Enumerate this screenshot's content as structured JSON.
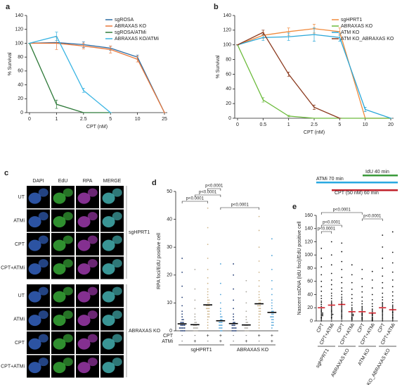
{
  "panel_c": {
    "panel": "c",
    "columns": [
      "DAPI",
      "EdU",
      "RPA",
      "MERGE"
    ],
    "rows": [
      "UT",
      "ATMi",
      "CPT",
      "CPT+ATMi",
      "UT",
      "ATMi",
      "CPT",
      "CPT+ATMi"
    ],
    "groups": [
      "sgHPRT1",
      "ABRAXAS KO"
    ]
  },
  "chart_data": [
    {
      "panel": "a",
      "type": "line",
      "xlabel": "CPT (nM)",
      "ylabel": "% Survival",
      "categories": [
        "0",
        "1",
        "2.5",
        "5",
        "10",
        "25"
      ],
      "ylim": [
        0,
        140
      ],
      "yticks": [
        0,
        20,
        40,
        60,
        80,
        100,
        120,
        140
      ],
      "series": [
        {
          "name": "sgROSA",
          "color": "#2b6ca3",
          "values": [
            100,
            101,
            98,
            93,
            80,
            0
          ],
          "errors": [
            0,
            0,
            4,
            3,
            3,
            0
          ]
        },
        {
          "name": "ABRAXAS KO",
          "color": "#e8773a",
          "values": [
            100,
            100,
            96,
            91,
            77,
            0
          ],
          "errors": [
            0,
            9,
            4,
            5,
            4,
            0
          ]
        },
        {
          "name": "sgROSA/ATMi",
          "color": "#2f7a3a",
          "values": [
            100,
            12,
            0,
            0,
            null,
            null
          ],
          "errors": [
            0,
            6,
            0,
            0,
            null,
            null
          ]
        },
        {
          "name": "ABRAXAS KO/ATMi",
          "color": "#3bb5e3",
          "values": [
            100,
            110,
            32,
            0,
            null,
            null
          ],
          "errors": [
            0,
            6,
            3,
            0,
            null,
            null
          ]
        }
      ]
    },
    {
      "panel": "b",
      "type": "line",
      "xlabel": "CPT (nM)",
      "ylabel": "% Survival",
      "categories": [
        "0",
        "0.5",
        "1",
        "2.5",
        "5",
        "10",
        "20"
      ],
      "ylim": [
        0,
        140
      ],
      "yticks": [
        0,
        20,
        40,
        60,
        80,
        100,
        120,
        140
      ],
      "series": [
        {
          "name": "sgHPRT1",
          "color": "#f08a3c",
          "values": [
            100,
            113,
            118,
            122,
            118,
            0,
            0
          ],
          "errors": [
            0,
            4,
            5,
            6,
            5,
            0,
            0
          ]
        },
        {
          "name": "ABRAXAS KO",
          "color": "#6cbb3c",
          "values": [
            100,
            25,
            3,
            0,
            0,
            0,
            0
          ],
          "errors": [
            0,
            3,
            1,
            0,
            0,
            0,
            0
          ]
        },
        {
          "name": "ATM KO",
          "color": "#2aa7d8",
          "values": [
            100,
            110,
            111,
            114,
            110,
            12,
            0
          ],
          "errors": [
            0,
            4,
            5,
            9,
            5,
            3,
            0
          ]
        },
        {
          "name": "ATM KO_ABRAXAS KO",
          "color": "#8b3a1e",
          "values": [
            100,
            117,
            60,
            15,
            0,
            null,
            null
          ],
          "errors": [
            0,
            3,
            3,
            3,
            0,
            null,
            null
          ]
        }
      ]
    },
    {
      "panel": "d",
      "type": "strip",
      "ylabel": "RPA foci/EdU positive cell",
      "ylim": [
        0,
        50
      ],
      "yticks": [
        0,
        10,
        20,
        30,
        40,
        50
      ],
      "mean_color": "#000000",
      "conditions": [
        {
          "label": "CPT",
          "values": [
            "-",
            "-",
            "+",
            "+",
            "-",
            "-",
            "+",
            "+"
          ]
        },
        {
          "label": "ATMi",
          "values": [
            "-",
            "+",
            "-",
            "+",
            "-",
            "+",
            "-",
            "+"
          ]
        }
      ],
      "genotypes": [
        "sgHPRT1",
        "ABRAXAS KO"
      ],
      "annotations": [
        {
          "text": "p<0.0001",
          "from": 2,
          "to": 3
        },
        {
          "text": "p<0.0001",
          "from": 1,
          "to": 3
        },
        {
          "text": "p<0.0001",
          "from": 0,
          "to": 2
        },
        {
          "text": "p<0.0001",
          "from": 3,
          "to": 6
        }
      ],
      "series": [
        {
          "color": "#1f3a73",
          "mean": 2.5,
          "points": [
            0,
            0,
            0,
            0,
            1,
            1,
            1,
            1,
            1,
            2,
            2,
            2,
            2,
            3,
            3,
            3,
            4,
            4,
            5,
            6,
            7,
            9,
            12,
            16,
            21,
            26
          ]
        },
        {
          "color": "#a9a59c",
          "mean": 2.2,
          "points": [
            0,
            0,
            0,
            0,
            1,
            1,
            1,
            1,
            2,
            2,
            2,
            3,
            3,
            4,
            5,
            6,
            8,
            11,
            15,
            22
          ]
        },
        {
          "color": "#cdb48a",
          "mean": 9.3,
          "points": [
            1,
            2,
            3,
            4,
            5,
            5,
            6,
            6,
            7,
            7,
            8,
            8,
            8,
            9,
            9,
            9,
            10,
            10,
            11,
            11,
            12,
            13,
            14,
            15,
            17,
            19,
            22,
            26,
            31,
            37,
            44
          ]
        },
        {
          "color": "#4fa3d8",
          "mean": 3.6,
          "points": [
            0,
            0,
            1,
            1,
            1,
            2,
            2,
            2,
            3,
            3,
            3,
            4,
            4,
            5,
            5,
            6,
            7,
            8,
            10,
            13,
            17,
            24
          ]
        },
        {
          "color": "#1f3a73",
          "mean": 2.6,
          "points": [
            0,
            0,
            0,
            0,
            1,
            1,
            1,
            1,
            2,
            2,
            2,
            3,
            3,
            4,
            5,
            6,
            8,
            11,
            15,
            20,
            24
          ]
        },
        {
          "color": "#a9a59c",
          "mean": 2.1,
          "points": [
            0,
            0,
            0,
            0,
            1,
            1,
            1,
            2,
            2,
            2,
            3,
            3,
            4,
            5,
            7,
            10,
            14,
            18
          ]
        },
        {
          "color": "#cdb48a",
          "mean": 9.7,
          "points": [
            1,
            2,
            3,
            4,
            5,
            6,
            6,
            7,
            7,
            8,
            8,
            9,
            9,
            9,
            10,
            10,
            11,
            11,
            12,
            13,
            14,
            16,
            18,
            21,
            25,
            30,
            36,
            41
          ]
        },
        {
          "color": "#4fa3d8",
          "mean": 6.6,
          "points": [
            1,
            2,
            2,
            3,
            3,
            4,
            4,
            5,
            5,
            5,
            6,
            6,
            7,
            7,
            8,
            9,
            10,
            11,
            13,
            15,
            18,
            22,
            27,
            33
          ]
        }
      ]
    },
    {
      "panel": "e",
      "type": "strip",
      "ylabel": "Nascent ssDNA (IdU foci)/EdU positive cell",
      "ylim": [
        0,
        160
      ],
      "yticks": [
        0,
        20,
        40,
        60,
        80,
        100,
        120,
        140,
        160
      ],
      "mean_color": "#d0202a",
      "categories": [
        "CPT",
        "CPT+ATMi",
        "CPT",
        "CPT+ATMi",
        "CPT",
        "CPT+ATMi",
        "CPT",
        "CPT+ATMi"
      ],
      "genotypes": [
        "sgHPRT1",
        "ABRAXAS KO",
        "ATM KO",
        "ATM KO_ABRAXAS KO"
      ],
      "schematic": [
        {
          "label": "IdU 40 min",
          "color": "#3a9a3a"
        },
        {
          "label": "ATMi 70 min",
          "color": "#29a8e0"
        },
        {
          "label": "CPT (50 nM) 60 min",
          "color": "#c0202a"
        }
      ],
      "annotations": [
        {
          "text": "p<0.0001",
          "from": 0,
          "to": 4
        },
        {
          "text": "p<0.0001",
          "from": 4,
          "to": 6
        },
        {
          "text": "p<0.0001",
          "from": 0,
          "to": 2
        },
        {
          "text": "p<0.0001",
          "from": 0,
          "to": 1
        }
      ],
      "series": [
        {
          "color": "#111111",
          "mean": 20,
          "points": [
            0,
            2,
            4,
            5,
            6,
            8,
            8,
            10,
            10,
            12,
            12,
            14,
            15,
            16,
            18,
            20,
            20,
            22,
            25,
            28,
            30,
            34,
            38,
            45,
            52,
            60,
            70,
            82,
            95,
            110
          ]
        },
        {
          "color": "#111111",
          "mean": 24,
          "points": [
            0,
            3,
            5,
            6,
            8,
            10,
            10,
            12,
            14,
            15,
            16,
            18,
            20,
            22,
            24,
            26,
            28,
            30,
            34,
            38,
            42,
            48,
            55,
            62,
            72,
            85,
            100,
            120
          ]
        },
        {
          "color": "#111111",
          "mean": 25,
          "points": [
            0,
            3,
            5,
            7,
            8,
            10,
            12,
            14,
            15,
            16,
            18,
            20,
            22,
            24,
            26,
            28,
            30,
            33,
            36,
            40,
            45,
            50,
            58,
            66,
            78,
            90,
            105,
            118
          ]
        },
        {
          "color": "#111111",
          "mean": 14,
          "points": [
            0,
            2,
            3,
            4,
            5,
            6,
            8,
            8,
            10,
            10,
            12,
            14,
            16,
            18,
            20,
            24,
            28,
            34,
            40,
            48,
            58,
            70,
            85
          ]
        },
        {
          "color": "#111111",
          "mean": 14,
          "points": [
            0,
            2,
            3,
            4,
            5,
            6,
            8,
            9,
            10,
            11,
            12,
            14,
            16,
            18,
            20,
            22,
            26,
            30,
            36,
            44,
            52,
            64,
            78
          ]
        },
        {
          "color": "#111111",
          "mean": 12,
          "points": [
            0,
            1,
            2,
            3,
            4,
            5,
            6,
            8,
            9,
            10,
            11,
            12,
            14,
            16,
            18,
            22,
            26,
            32,
            40,
            50,
            62,
            75
          ]
        },
        {
          "color": "#111111",
          "mean": 20,
          "points": [
            0,
            2,
            4,
            6,
            8,
            10,
            12,
            14,
            15,
            16,
            18,
            20,
            22,
            24,
            26,
            28,
            32,
            36,
            42,
            50,
            58,
            68,
            80,
            95,
            112,
            130
          ]
        },
        {
          "color": "#111111",
          "mean": 17,
          "points": [
            0,
            2,
            4,
            5,
            6,
            8,
            10,
            12,
            13,
            14,
            16,
            18,
            20,
            22,
            24,
            28,
            32,
            38,
            44,
            52,
            62,
            74,
            88,
            104,
            135
          ]
        }
      ]
    }
  ]
}
